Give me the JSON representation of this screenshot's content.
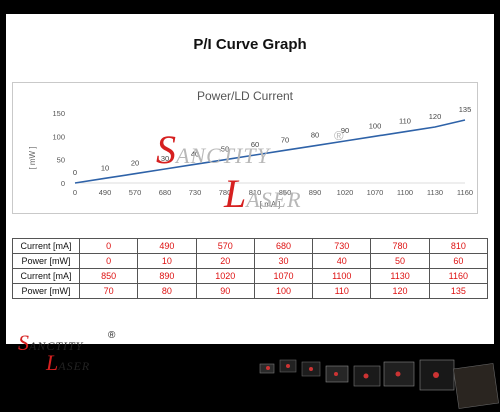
{
  "page": {
    "title": "P/I Curve Graph"
  },
  "chart_data": {
    "type": "line",
    "title": "Power/LD Current",
    "xlabel": "[ mA ]",
    "ylabel": "[ mW ]",
    "categories": [
      "0",
      "490",
      "570",
      "680",
      "730",
      "780",
      "810",
      "850",
      "890",
      "1020",
      "1070",
      "1100",
      "1130",
      "1160"
    ],
    "series": [
      {
        "values": [
          0,
          10,
          20,
          30,
          40,
          50,
          60,
          70,
          80,
          90,
          100,
          110,
          120,
          135
        ]
      }
    ],
    "ylim": [
      0,
      150
    ],
    "yticks": [
      "0",
      "50",
      "100",
      "150"
    ],
    "data_labels": true,
    "grid": false,
    "line_color": "#2e62a8"
  },
  "table": {
    "rows": [
      {
        "label": "Current [mA]",
        "cells": [
          "0",
          "490",
          "570",
          "680",
          "730",
          "780",
          "810"
        ]
      },
      {
        "label": "Power [mW]",
        "cells": [
          "0",
          "10",
          "20",
          "30",
          "40",
          "50",
          "60"
        ]
      },
      {
        "label": "Current [mA]",
        "cells": [
          "850",
          "890",
          "1020",
          "1070",
          "1100",
          "1130",
          "1160"
        ]
      },
      {
        "label": "Power [mW]",
        "cells": [
          "70",
          "80",
          "90",
          "100",
          "110",
          "120",
          "135"
        ]
      }
    ]
  },
  "watermark": {
    "s_letter": "S",
    "rest1": "ANCTITY",
    "l_letter": "L",
    "rest2": "ASER",
    "reg": "®"
  },
  "logo": {
    "s_letter": "S",
    "rest1": "ANCTITY",
    "l_letter": "L",
    "rest2": "ASER",
    "reg": "®"
  },
  "colors": {
    "background": "#000000",
    "panel": "#ffffff",
    "brand_red": "#d62020",
    "table_value": "#dd1111"
  }
}
